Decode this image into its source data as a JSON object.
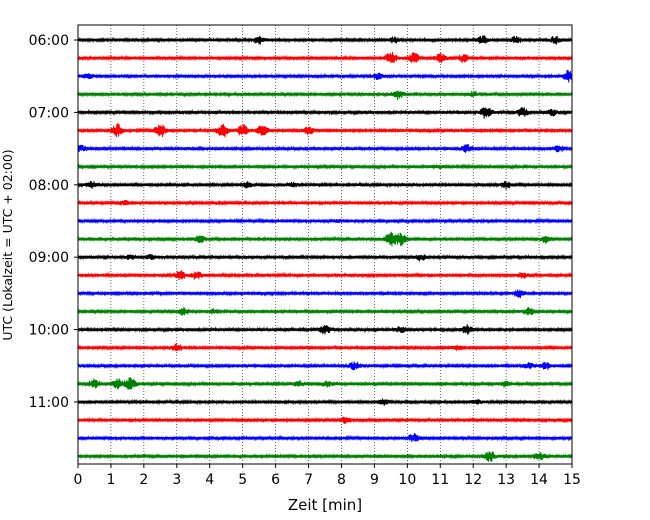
{
  "chart_data": {
    "type": "line",
    "title": "",
    "xlabel": "Zeit  [min]",
    "ylabel": "UTC (Lokalzeit = UTC + 02:00)",
    "xlim": [
      0,
      15
    ],
    "x_ticks": [
      "0",
      "1",
      "2",
      "3",
      "4",
      "5",
      "6",
      "7",
      "8",
      "9",
      "10",
      "11",
      "12",
      "13",
      "14",
      "15"
    ],
    "y_ticks": [
      "06:00",
      "07:00",
      "08:00",
      "09:00",
      "10:00",
      "11:00"
    ],
    "grid": "vertical dotted lines at each minute",
    "trace_colors": [
      "#000000",
      "#ff0000",
      "#0000ff",
      "#008000"
    ],
    "series": [
      {
        "start": "06:00",
        "events": [
          [
            5.5,
            0.5
          ],
          [
            9.6,
            0.4
          ],
          [
            12.3,
            0.6
          ],
          [
            13.3,
            0.4
          ],
          [
            14.5,
            0.5
          ]
        ]
      },
      {
        "start": "06:15",
        "events": [
          [
            9.5,
            0.9
          ],
          [
            10.2,
            0.7
          ],
          [
            11.0,
            0.6
          ],
          [
            11.7,
            0.5
          ]
        ]
      },
      {
        "start": "06:30",
        "events": [
          [
            0.3,
            0.3
          ],
          [
            9.1,
            0.4
          ],
          [
            14.9,
            0.8
          ]
        ]
      },
      {
        "start": "06:45",
        "events": [
          [
            9.7,
            0.7
          ],
          [
            12.0,
            0.3
          ]
        ]
      },
      {
        "start": "07:00",
        "events": [
          [
            12.4,
            0.9
          ],
          [
            13.5,
            0.6
          ],
          [
            14.4,
            0.4
          ]
        ]
      },
      {
        "start": "07:15",
        "events": [
          [
            1.2,
            0.9
          ],
          [
            2.5,
            0.9
          ],
          [
            4.4,
            1.0
          ],
          [
            5.0,
            0.8
          ],
          [
            5.6,
            0.7
          ],
          [
            7.0,
            0.5
          ]
        ]
      },
      {
        "start": "07:30",
        "events": [
          [
            0.1,
            0.4
          ],
          [
            11.8,
            0.5
          ],
          [
            14.6,
            0.4
          ]
        ]
      },
      {
        "start": "07:45",
        "events": [
          [
            10.9,
            0.2
          ]
        ]
      },
      {
        "start": "08:00",
        "events": [
          [
            0.4,
            0.4
          ],
          [
            5.1,
            0.4
          ],
          [
            6.5,
            0.3
          ],
          [
            13.0,
            0.5
          ]
        ]
      },
      {
        "start": "08:15",
        "events": [
          [
            1.4,
            0.3
          ],
          [
            4.3,
            0.2
          ]
        ]
      },
      {
        "start": "08:30",
        "events": [
          [
            7.9,
            0.2
          ]
        ]
      },
      {
        "start": "08:45",
        "events": [
          [
            3.7,
            0.5
          ],
          [
            9.5,
            0.9
          ],
          [
            9.8,
            0.8
          ],
          [
            14.2,
            0.5
          ]
        ]
      },
      {
        "start": "09:00",
        "events": [
          [
            1.6,
            0.3
          ],
          [
            2.2,
            0.3
          ],
          [
            10.4,
            0.4
          ]
        ]
      },
      {
        "start": "09:15",
        "events": [
          [
            3.1,
            0.6
          ],
          [
            3.6,
            0.5
          ],
          [
            13.5,
            0.4
          ]
        ]
      },
      {
        "start": "09:30",
        "events": [
          [
            13.4,
            0.5
          ]
        ]
      },
      {
        "start": "09:45",
        "events": [
          [
            3.2,
            0.5
          ],
          [
            4.1,
            0.3
          ],
          [
            13.7,
            0.5
          ]
        ]
      },
      {
        "start": "10:00",
        "events": [
          [
            7.5,
            0.6
          ],
          [
            9.8,
            0.4
          ],
          [
            11.8,
            0.6
          ]
        ]
      },
      {
        "start": "10:15",
        "events": [
          [
            3.0,
            0.6
          ],
          [
            11.5,
            0.3
          ]
        ]
      },
      {
        "start": "10:30",
        "events": [
          [
            8.4,
            0.5
          ],
          [
            13.7,
            0.4
          ],
          [
            14.2,
            0.5
          ]
        ]
      },
      {
        "start": "10:45",
        "events": [
          [
            0.5,
            0.6
          ],
          [
            1.2,
            0.7
          ],
          [
            1.6,
            0.8
          ],
          [
            6.7,
            0.4
          ],
          [
            7.6,
            0.4
          ],
          [
            13.0,
            0.4
          ]
        ]
      },
      {
        "start": "11:00",
        "events": [
          [
            9.3,
            0.4
          ],
          [
            12.1,
            0.3
          ]
        ]
      },
      {
        "start": "11:15",
        "events": [
          [
            8.1,
            0.4
          ]
        ]
      },
      {
        "start": "11:30",
        "events": [
          [
            10.2,
            0.6
          ]
        ]
      },
      {
        "start": "11:45",
        "events": [
          [
            12.5,
            0.7
          ],
          [
            14.0,
            0.5
          ]
        ]
      }
    ]
  }
}
